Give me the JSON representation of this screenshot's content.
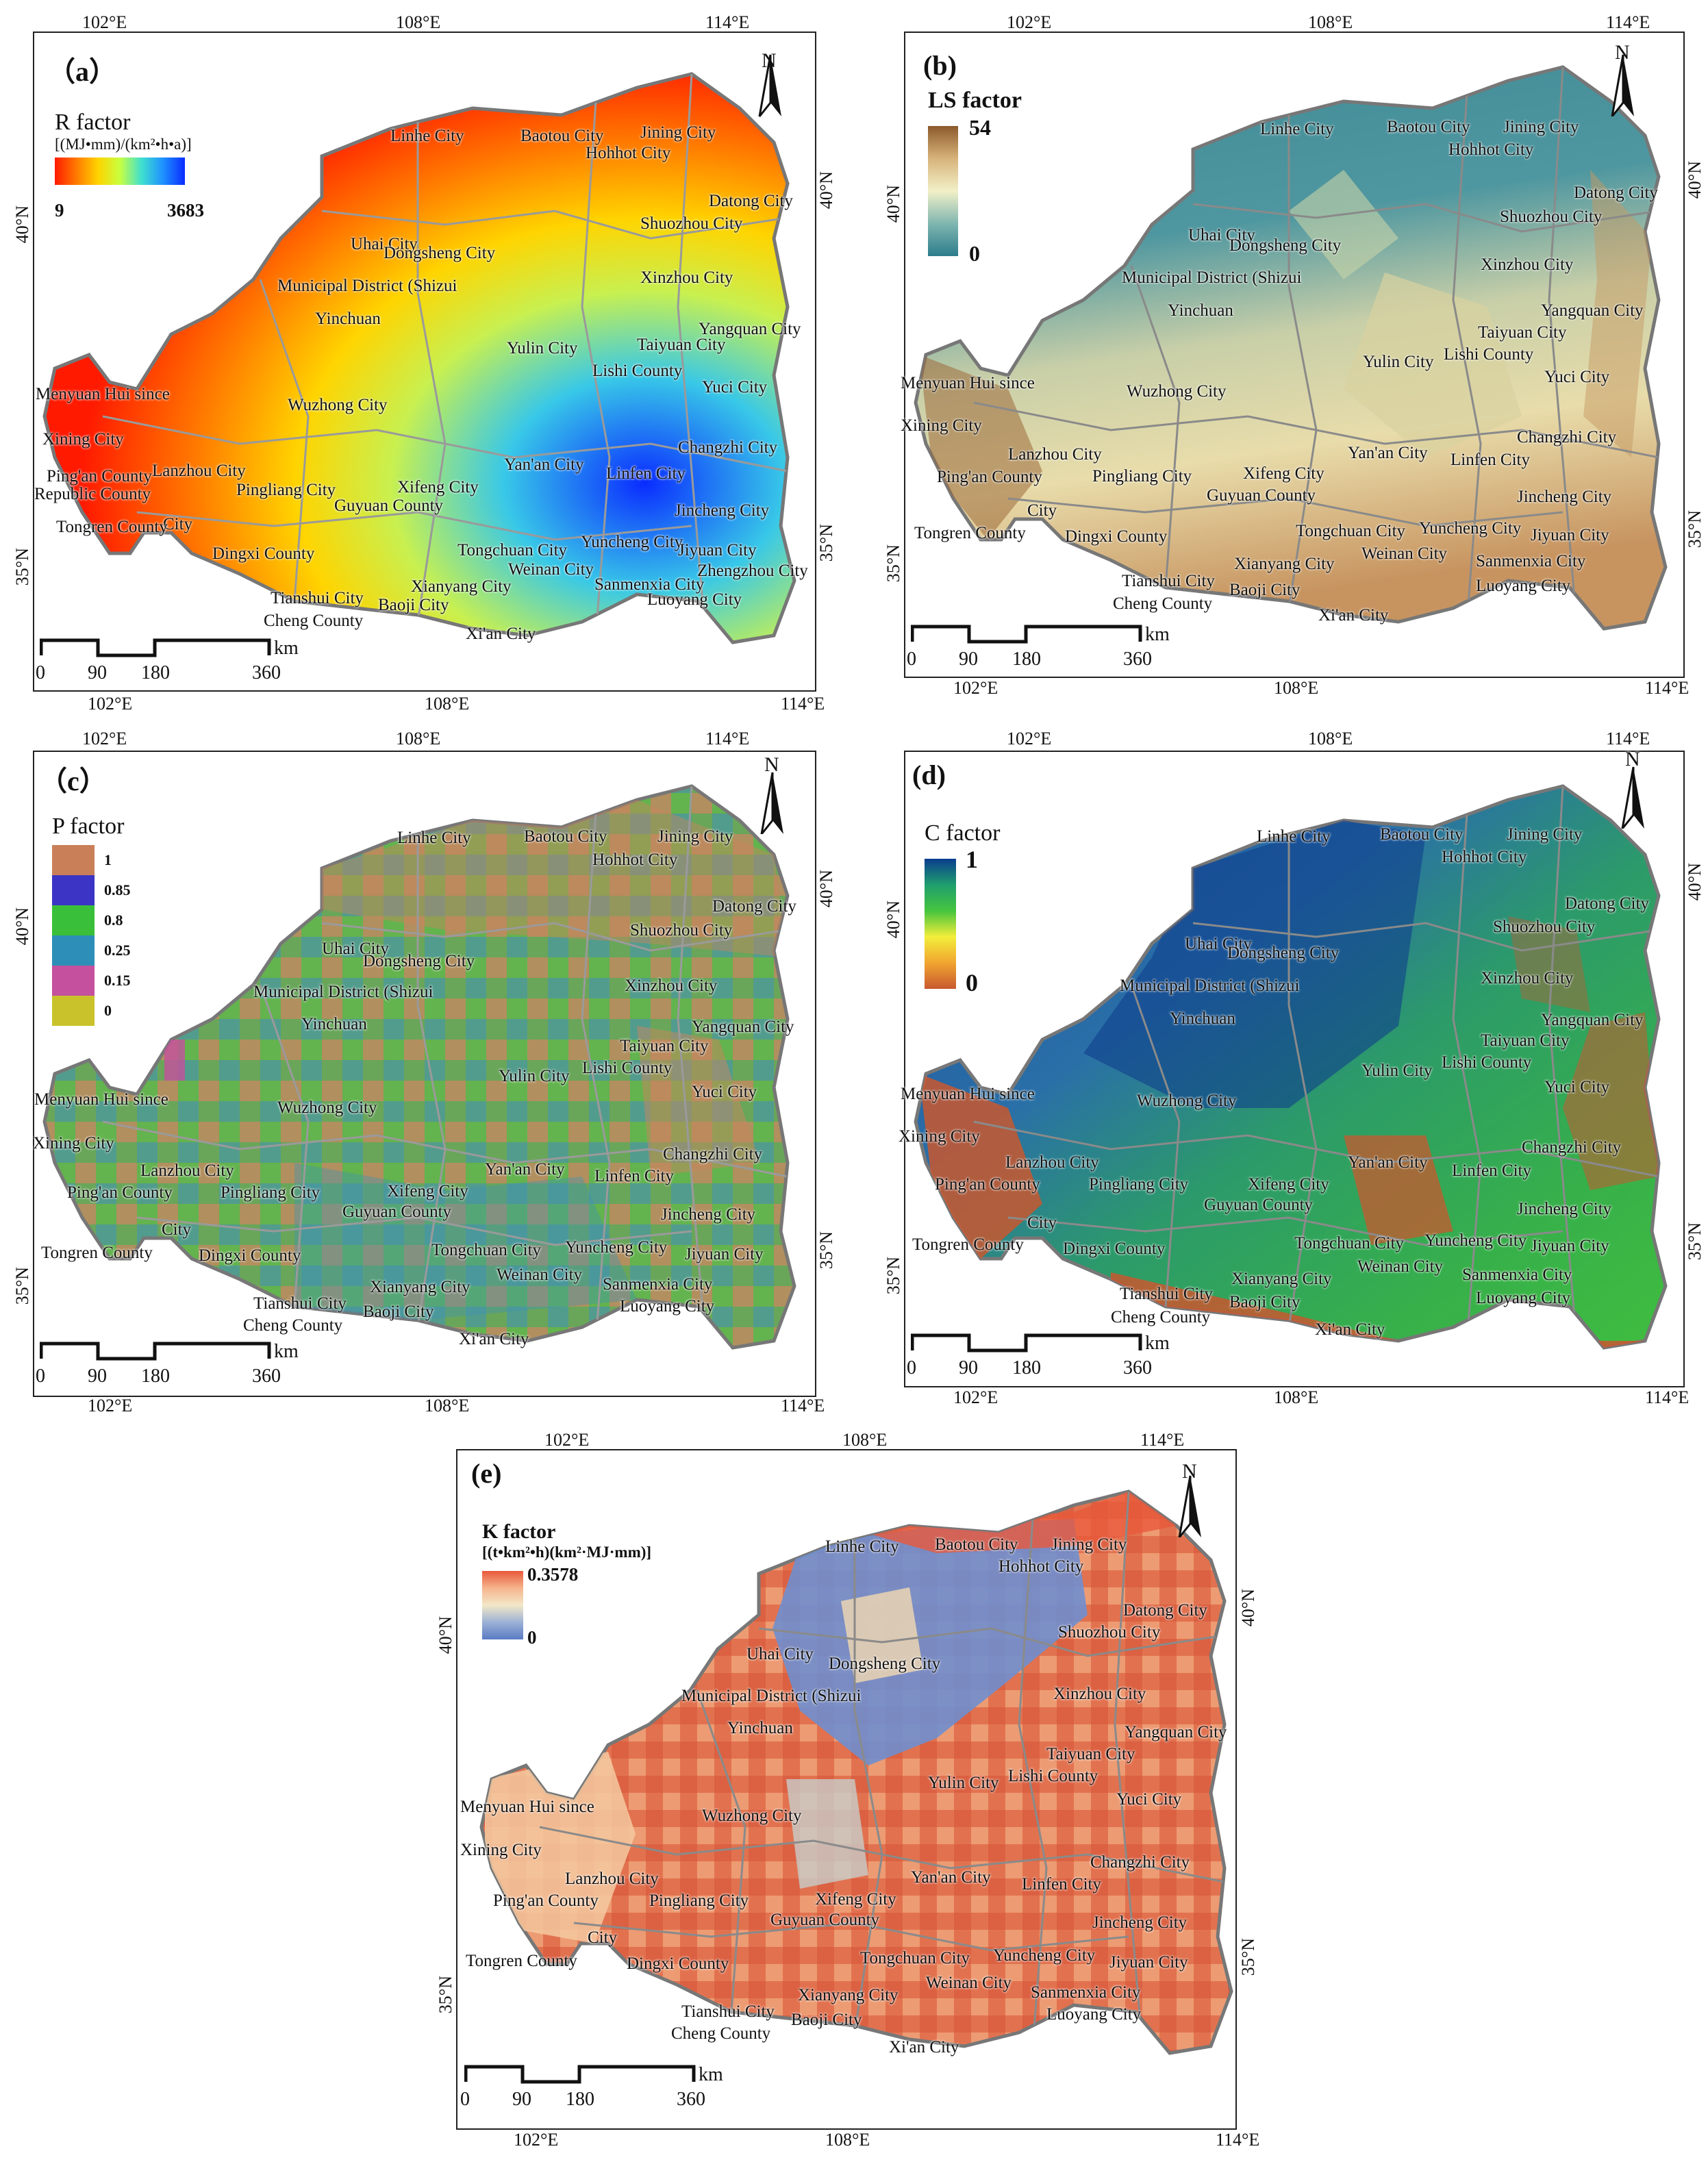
{
  "cities": [
    "Linhe City",
    "Baotou City",
    "Jining City",
    "Hohhot City",
    "Datong City",
    "Shuozhou City",
    "Uhai City",
    "Dongsheng City",
    "Municipal District (Shizui",
    "Yinchuan",
    "Xinzhou City",
    "Yangquan City",
    "Taiyuan City",
    "Lishi County",
    "Yulin City",
    "Yuci City",
    "Menyuan Hui since",
    "Wuzhong City",
    "Xining City",
    "Lanzhou City",
    "Changzhi City",
    "Ping'an County",
    "Pingliang City",
    "Yan'an City",
    "Xifeng City",
    "Linfen City",
    "Guyuan County",
    "City",
    "Jincheng City",
    "Tongren County",
    "Dingxi County",
    "Tongchuan City",
    "Yuncheng City",
    "Jiyuan City",
    "Weinan City",
    "Sanmenxia City",
    "Tianshui City",
    "Xianyang City",
    "Baoji City",
    "Luoyang City",
    "Cheng County",
    "Xi'an City"
  ],
  "ticks": {
    "lon": [
      "102°E",
      "108°E",
      "114°E"
    ],
    "lat": [
      "40°N",
      "35°N"
    ]
  },
  "north_label": "N",
  "scale": {
    "unit": "km",
    "labels": [
      "0",
      "90",
      "180",
      "360"
    ]
  },
  "panels": {
    "a": {
      "label": "（a）",
      "legend_title": "R factor",
      "legend_unit": "[(MJ•mm)/(km²•h•a)]",
      "legend_min": "9",
      "legend_max": "3683",
      "extra_cities": [
        "Republic County",
        "Zhengzhou City"
      ],
      "ramp_colors": [
        "#ff1a00",
        "#ff7a00",
        "#ffd400",
        "#c8ff40",
        "#3fe0d0",
        "#1e90ff",
        "#0a2cff"
      ]
    },
    "b": {
      "label": "(b)",
      "legend_title": "LS factor",
      "legend_max": "54",
      "legend_min": "0",
      "ramp_colors": [
        "#8c5a2b",
        "#d8b37a",
        "#f2f0c8",
        "#7fb6b0",
        "#2c7c8c"
      ]
    },
    "c": {
      "label": "（c）",
      "legend_title": "P factor",
      "classes": [
        {
          "label": "1",
          "color": "#c97f58"
        },
        {
          "label": "0.85",
          "color": "#3b34c4"
        },
        {
          "label": "0.8",
          "color": "#39bf3a"
        },
        {
          "label": "0.25",
          "color": "#2d8fb8"
        },
        {
          "label": "0.15",
          "color": "#c4509e"
        },
        {
          "label": "0",
          "color": "#c9c22a"
        }
      ]
    },
    "d": {
      "label": "(d)",
      "legend_title": "C factor",
      "legend_max": "1",
      "legend_min": "0",
      "ramp_colors": [
        "#0a3d8f",
        "#1f9e6e",
        "#45c43e",
        "#f2ee3a",
        "#f1a530",
        "#c8582f"
      ]
    },
    "e": {
      "label": "(e)",
      "legend_title": "K factor",
      "legend_unit": "[(t•km²•h)(km²·MJ·mm)]",
      "legend_max": "0.3578",
      "legend_min": "0",
      "ramp_colors": [
        "#e8593b",
        "#f5b48c",
        "#f3e8c8",
        "#9bb1d6",
        "#5a7bc4"
      ]
    }
  }
}
